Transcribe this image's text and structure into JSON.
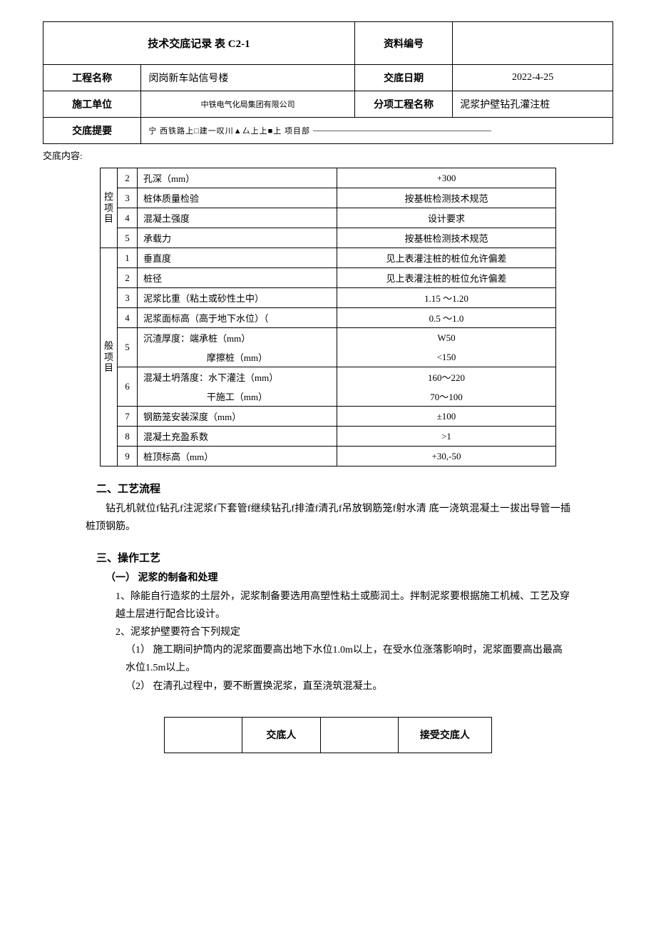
{
  "header": {
    "title": "技术交底记录 表 C2-1",
    "doc_no_label": "资料编号",
    "doc_no": "",
    "proj_name_label": "工程名称",
    "proj_name": "闵岗新车站信号楼",
    "date_label": "交底日期",
    "date": "2022-4-25",
    "unit_label": "施工单位",
    "unit": "中铁电气化局集团有限公司",
    "subproj_label": "分项工程名称",
    "subproj": "泥浆护壁钻孔灌注桩",
    "summary_label": "交底提要",
    "summary": "宁 西铁路上□建一叹川▲厶上上■上 项目部"
  },
  "content_label": "交底内容:",
  "group1": {
    "label": "控项目",
    "rows": [
      {
        "n": "2",
        "d": "孔深（mm）",
        "v": "+300"
      },
      {
        "n": "3",
        "d": "桩体质量检验",
        "v": "按基桩检测技术规范"
      },
      {
        "n": "4",
        "d": "混凝土强度",
        "v": "设计要求"
      },
      {
        "n": "5",
        "d": "承载力",
        "v": "按基桩检测技术规范"
      }
    ]
  },
  "group2": {
    "label": "般项目",
    "rows": [
      {
        "n": "1",
        "d": "垂直度",
        "v": "见上表灌注桩的桩位允许偏差"
      },
      {
        "n": "2",
        "d": "桩径",
        "v": "见上表灌注桩的桩位允许偏差"
      },
      {
        "n": "3",
        "d": "泥浆比重（粘土或砂性土中）",
        "v": "1.15 〜1.20"
      },
      {
        "n": "4",
        "d": "泥浆面标高（高于地下水位）（",
        "v": "0.5 〜1.0"
      },
      {
        "n": "5",
        "d": "沉渣厚度：端承桩（mm）",
        "v": "W50",
        "d2": "摩擦桩（mm）",
        "v2": "<150"
      },
      {
        "n": "6",
        "d": "混凝土坍落度：水下灌注（mm）",
        "v": "160〜220",
        "d2": "干施工（mm）",
        "v2": "70〜100"
      },
      {
        "n": "7",
        "d": "钢筋笼安装深度（mm）",
        "v": "±100"
      },
      {
        "n": "8",
        "d": "混凝土充盈系数",
        "v": ">1"
      },
      {
        "n": "9",
        "d": "桩顶标高（mm）",
        "v": "+30,-50"
      }
    ]
  },
  "s2": {
    "title": "二、工艺流程",
    "body": "钻孔机就位f钻孔f注泥浆f下套管f继续钻孔f排渣f清孔f吊放钢筋笼f射水清 底一浇筑混凝土一拔出导管一插桩顶钢筋。"
  },
  "s3": {
    "title": "三、操作工艺",
    "sub1": "（一） 泥浆的制备和处理",
    "li1": "1、除能自行造浆的土层外，泥浆制备要选用高塑性粘土或膨润土。拌制泥浆要根据施工机械、工艺及穿越土层进行配合比设计。",
    "li2": "2、泥浆护壁要符合下列规定",
    "li2a": "（1） 施工期间护筒内的泥浆面要高出地下水位1.0m以上，在受水位涨落影响时，泥浆面要高出最高水位1.5m以上。",
    "li2b": "（2） 在清孔过程中，要不断置换泥浆，直至浇筑混凝土。"
  },
  "sig": {
    "a": "交底人",
    "b": "接受交底人"
  }
}
